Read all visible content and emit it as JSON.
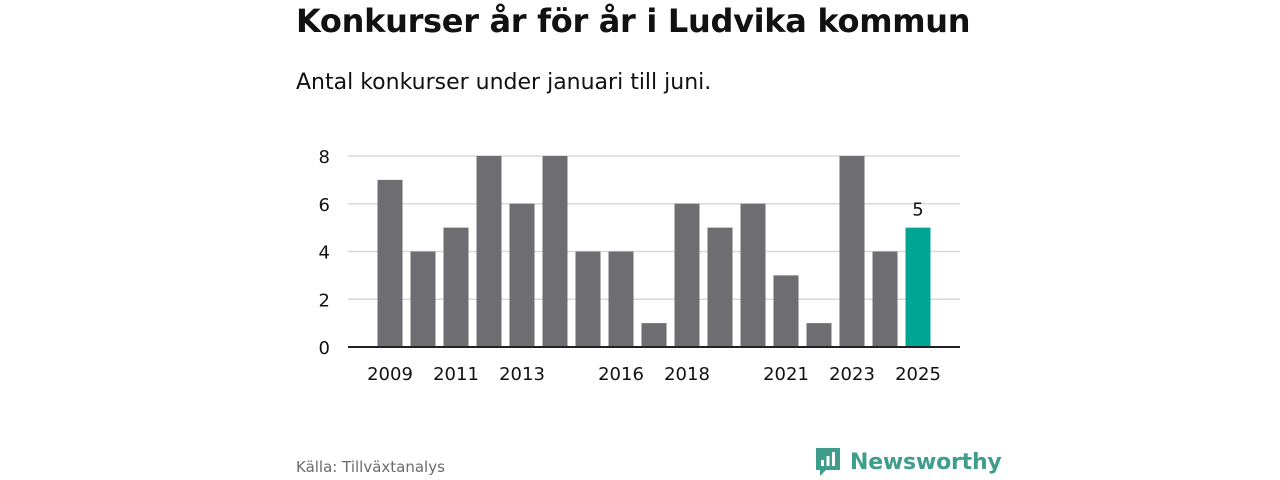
{
  "header": {
    "title": "Konkurser år för år i Ludvika kommun",
    "subtitle": "Antal konkurser under januari till juni."
  },
  "footer": {
    "source": "Källa: Tillväxtanalys",
    "brand": "Newsworthy"
  },
  "colors": {
    "bar": "#6e6d72",
    "highlight": "#00a693",
    "brand": "#3f9d8c",
    "grid": "#d9d9d9",
    "axis": "#222222"
  },
  "chart_data": {
    "type": "bar",
    "categories": [
      "2009",
      "2010",
      "2011",
      "2012",
      "2013",
      "2014",
      "2015",
      "2016",
      "2017",
      "2018",
      "2019",
      "2020",
      "2021",
      "2022",
      "2023",
      "2024",
      "2025"
    ],
    "x_tick_labels": [
      "2009",
      "2011",
      "2013",
      "2016",
      "2018",
      "2021",
      "2023",
      "2025"
    ],
    "values": [
      7,
      4,
      5,
      8,
      6,
      8,
      4,
      4,
      1,
      6,
      5,
      6,
      3,
      1,
      8,
      4,
      5
    ],
    "highlight_category": "2025",
    "data_labels": [
      {
        "category": "2025",
        "label": "5"
      }
    ],
    "ylim": [
      0,
      8
    ],
    "y_ticks": [
      0,
      2,
      4,
      6,
      8
    ],
    "grid": true,
    "legend": "none"
  }
}
